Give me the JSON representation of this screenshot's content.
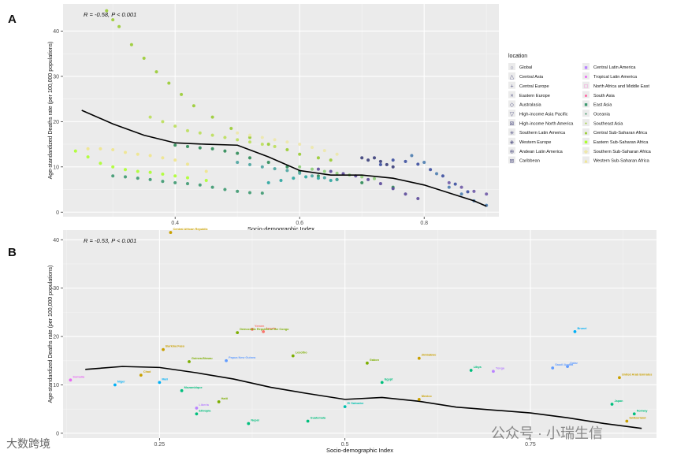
{
  "panels": {
    "a": {
      "letter": "A",
      "annotation": "R = -0.58, P < 0.001",
      "xlabel": "Socio-demographic Index",
      "ylabel": "Age-standardized Deaths rate (per 100,000 populations)"
    },
    "b": {
      "letter": "B",
      "annotation": "R = -0.53, P < 0.001",
      "xlabel": "Socio-demographic Index",
      "ylabel": "Age-standardized Deaths rate (per 100,000 populations)"
    }
  },
  "legend": {
    "title": "location",
    "items": [
      {
        "label": "Global",
        "symbol": "circle-open",
        "color": "#f8766d"
      },
      {
        "label": "Central Asia",
        "symbol": "triangle-open",
        "color": "#e58700"
      },
      {
        "label": "Central Europe",
        "symbol": "plus",
        "color": "#c99800"
      },
      {
        "label": "Eastern Europe",
        "symbol": "cross",
        "color": "#a3a500"
      },
      {
        "label": "Australasia",
        "symbol": "diamond-open",
        "color": "#6bb100"
      },
      {
        "label": "High-income Asia Pacific",
        "symbol": "triangle-down-open",
        "color": "#00ba38"
      },
      {
        "label": "High-income North America",
        "symbol": "square-cross",
        "color": "#00bf7d"
      },
      {
        "label": "Southern Latin America",
        "symbol": "star",
        "color": "#00c0af"
      },
      {
        "label": "Western Europe",
        "symbol": "diamond-plus",
        "color": "#00bcd8"
      },
      {
        "label": "Andean Latin America",
        "symbol": "circle-plus",
        "color": "#00b0f6"
      },
      {
        "label": "Caribbean",
        "symbol": "square-x",
        "color": "#619cff"
      },
      {
        "label": "Central Latin America",
        "symbol": "square",
        "color": "#b983ff"
      },
      {
        "label": "Tropical Latin America",
        "symbol": "circle",
        "color": "#e76bf3"
      },
      {
        "label": "North Africa and Middle East",
        "symbol": "square-open",
        "color": "#fd61d1"
      },
      {
        "label": "South Asia",
        "symbol": "circle",
        "color": "#ff67a4"
      },
      {
        "label": "East Asia",
        "symbol": "square",
        "color": "#3d9970"
      },
      {
        "label": "Oceania",
        "symbol": "dot",
        "color": "#2e8b57"
      },
      {
        "label": "Southeast Asia",
        "symbol": "dot",
        "color": "#9acd32"
      },
      {
        "label": "Central Sub-Saharan Africa",
        "symbol": "circle",
        "color": "#9acd32"
      },
      {
        "label": "Eastern Sub-Saharan Africa",
        "symbol": "square",
        "color": "#adff2f"
      },
      {
        "label": "Southern Sub-Saharan Africa",
        "symbol": "diamond",
        "color": "#eee8aa"
      },
      {
        "label": "Western Sub-Saharan Africa",
        "symbol": "triangle",
        "color": "#f0e68c"
      }
    ]
  },
  "watermarks": {
    "left": "大数跨境",
    "right": "公众号 · 小瑞生信"
  },
  "chart_data": [
    {
      "type": "scatter",
      "title": "",
      "xlabel": "Socio-demographic Index",
      "ylabel": "Age-standardized Deaths rate (per 100,000 populations)",
      "xlim": [
        0.22,
        0.92
      ],
      "ylim": [
        -1,
        46
      ],
      "xticks": [
        0.4,
        0.6,
        0.8
      ],
      "yticks": [
        0,
        10,
        20,
        30,
        40
      ],
      "smooth_curve": {
        "x": [
          0.25,
          0.3,
          0.35,
          0.4,
          0.45,
          0.5,
          0.55,
          0.6,
          0.65,
          0.7,
          0.75,
          0.8,
          0.85,
          0.88,
          0.9
        ],
        "y": [
          22.5,
          19.5,
          17,
          15.3,
          15,
          14.8,
          12.2,
          9.2,
          8.2,
          8.2,
          7.5,
          6,
          3.8,
          2.5,
          1.3
        ]
      },
      "series": [
        {
          "name": "Western Sub-Saharan Africa",
          "color": "#9acd32",
          "x": [
            0.29,
            0.3,
            0.31,
            0.33,
            0.35,
            0.37,
            0.39,
            0.41,
            0.43,
            0.46,
            0.49,
            0.52,
            0.55,
            0.58,
            0.6,
            0.63,
            0.65
          ],
          "y": [
            44.5,
            42.5,
            41,
            37,
            34,
            31,
            28.5,
            26,
            23.5,
            21,
            18.5,
            16.5,
            15,
            13.8,
            12.8,
            12,
            11.5
          ]
        },
        {
          "name": "Oceania",
          "color": "#3d9970",
          "x": [
            0.3,
            0.32,
            0.34,
            0.36,
            0.38,
            0.4,
            0.42,
            0.44,
            0.46,
            0.48,
            0.5,
            0.52,
            0.54
          ],
          "y": [
            8,
            7.8,
            7.5,
            7.2,
            6.8,
            6.5,
            6.3,
            6,
            5.5,
            5,
            4.6,
            4.3,
            4.2
          ]
        },
        {
          "name": "Central Sub-Saharan Africa",
          "color": "#adff2f",
          "x": [
            0.24,
            0.26,
            0.28,
            0.3,
            0.32,
            0.34,
            0.36,
            0.38,
            0.4,
            0.42,
            0.45
          ],
          "y": [
            13.5,
            12.2,
            10.8,
            10,
            9.4,
            9,
            8.8,
            8.4,
            8,
            7.6,
            7
          ]
        },
        {
          "name": "Eastern Sub-Saharan Africa",
          "color": "#f0e68c",
          "x": [
            0.26,
            0.28,
            0.3,
            0.32,
            0.34,
            0.36,
            0.38,
            0.4,
            0.42,
            0.45
          ],
          "y": [
            14,
            14,
            13.8,
            13.2,
            12.8,
            12.5,
            12,
            11.5,
            10.6,
            9
          ]
        },
        {
          "name": "Southeast Asia",
          "color": "#2e8b57",
          "x": [
            0.4,
            0.42,
            0.44,
            0.46,
            0.48,
            0.5,
            0.52,
            0.55,
            0.58,
            0.6,
            0.63,
            0.66,
            0.7,
            0.75
          ],
          "y": [
            14.8,
            14.5,
            14.2,
            14,
            13.5,
            13,
            12,
            11,
            10,
            9,
            8,
            7.2,
            6.5,
            5.5
          ]
        },
        {
          "name": "South Asia",
          "color": "#bcdf5a",
          "x": [
            0.36,
            0.38,
            0.4,
            0.42,
            0.44,
            0.46,
            0.48,
            0.5,
            0.52,
            0.54,
            0.56
          ],
          "y": [
            21,
            20,
            19,
            18,
            17.5,
            17,
            16.5,
            16,
            15.5,
            15,
            14.5
          ]
        },
        {
          "name": "Southern Sub-Saharan Africa",
          "color": "#eee8aa",
          "x": [
            0.5,
            0.52,
            0.54,
            0.56,
            0.58,
            0.6,
            0.62,
            0.64,
            0.66
          ],
          "y": [
            17.5,
            17,
            16.5,
            16,
            15.5,
            15,
            14.3,
            13.6,
            12.8
          ]
        },
        {
          "name": "High-income Asia Pacific",
          "color": "#3c4fa0",
          "x": [
            0.73,
            0.75,
            0.77,
            0.79,
            0.81,
            0.83,
            0.85,
            0.87
          ],
          "y": [
            10.5,
            11.5,
            11.2,
            10.6,
            9.4,
            8,
            6.2,
            4.5
          ]
        },
        {
          "name": "Central Europe",
          "color": "#5b4a9a",
          "x": [
            0.63,
            0.65,
            0.67,
            0.69,
            0.71,
            0.73,
            0.75,
            0.77,
            0.79
          ],
          "y": [
            9.5,
            9,
            8.5,
            8,
            7.2,
            6.3,
            5.2,
            4,
            3
          ]
        },
        {
          "name": "Eastern Europe",
          "color": "#3a3f7a",
          "x": [
            0.7,
            0.71,
            0.72,
            0.73,
            0.74,
            0.75
          ],
          "y": [
            12,
            11.5,
            12,
            11.2,
            10.5,
            10
          ]
        },
        {
          "name": "Western Europe",
          "color": "#4c7db0",
          "x": [
            0.78,
            0.8,
            0.82,
            0.84,
            0.86,
            0.88,
            0.9
          ],
          "y": [
            12.5,
            11,
            8.5,
            5.5,
            4,
            2.5,
            1.5
          ]
        },
        {
          "name": "North Africa and Middle East",
          "color": "#4aa5a0",
          "x": [
            0.5,
            0.52,
            0.54,
            0.56,
            0.58,
            0.6,
            0.62,
            0.64,
            0.66
          ],
          "y": [
            11,
            10.5,
            10,
            9.6,
            9.2,
            8.6,
            8,
            7.6,
            7.2
          ]
        },
        {
          "name": "Andean Latin America",
          "color": "#2aa6a0",
          "x": [
            0.55,
            0.57,
            0.59,
            0.61,
            0.63,
            0.65
          ],
          "y": [
            6.5,
            7,
            7.5,
            7.8,
            7.5,
            7
          ]
        },
        {
          "name": "Tropical Latin America",
          "color": "#8fcf7a",
          "x": [
            0.6,
            0.62,
            0.64,
            0.66,
            0.68,
            0.7,
            0.72
          ],
          "y": [
            10,
            9.5,
            9,
            8.6,
            8.2,
            7.8,
            7.4
          ]
        },
        {
          "name": "Australasia",
          "color": "#6f5aa8",
          "x": [
            0.84,
            0.86,
            0.88,
            0.9
          ],
          "y": [
            6.5,
            5.5,
            4.6,
            4
          ]
        }
      ]
    },
    {
      "type": "scatter",
      "title": "",
      "xlabel": "Socio-demographic Index",
      "ylabel": "Age-standardized Deaths rate (per 100,000 populations)",
      "xlim": [
        0.12,
        0.92
      ],
      "ylim": [
        -1,
        42
      ],
      "xticks": [
        0.25,
        0.5,
        0.75
      ],
      "yticks": [
        0,
        10,
        20,
        30,
        40
      ],
      "smooth_curve": {
        "x": [
          0.15,
          0.2,
          0.25,
          0.3,
          0.35,
          0.4,
          0.45,
          0.5,
          0.55,
          0.6,
          0.65,
          0.7,
          0.75,
          0.8,
          0.85,
          0.9
        ],
        "y": [
          13.2,
          13.8,
          13.6,
          12.5,
          11.2,
          9.5,
          8.2,
          7,
          7.4,
          6.6,
          5.4,
          4.8,
          4.2,
          3.2,
          2,
          1
        ]
      },
      "points": [
        {
          "label": "Central African Republic",
          "x": 0.265,
          "y": 41.5,
          "color": "#c9a000"
        },
        {
          "label": "Yemen",
          "x": 0.375,
          "y": 21.5,
          "color": "#f8766d"
        },
        {
          "label": "Angola",
          "x": 0.39,
          "y": 21,
          "color": "#f8766d"
        },
        {
          "label": "Democratic Republic of the Congo",
          "x": 0.355,
          "y": 20.8,
          "color": "#7cae00"
        },
        {
          "label": "Burkina Faso",
          "x": 0.255,
          "y": 17.3,
          "color": "#c9a000"
        },
        {
          "label": "Lesotho",
          "x": 0.43,
          "y": 16,
          "color": "#7cae00"
        },
        {
          "label": "Papua New Guinea",
          "x": 0.34,
          "y": 15,
          "color": "#619cff"
        },
        {
          "label": "Guinea-Bissau",
          "x": 0.29,
          "y": 14.8,
          "color": "#7cae00"
        },
        {
          "label": "Gabon",
          "x": 0.53,
          "y": 14.5,
          "color": "#7cae00"
        },
        {
          "label": "Zimbabwe",
          "x": 0.6,
          "y": 15.5,
          "color": "#c9a000"
        },
        {
          "label": "Brunei",
          "x": 0.81,
          "y": 21,
          "color": "#00b0f6"
        },
        {
          "label": "Chad",
          "x": 0.225,
          "y": 12,
          "color": "#c9a000"
        },
        {
          "label": "Somalia",
          "x": 0.13,
          "y": 11,
          "color": "#e76bf3"
        },
        {
          "label": "Niger",
          "x": 0.19,
          "y": 10,
          "color": "#00b0f6"
        },
        {
          "label": "Mali",
          "x": 0.25,
          "y": 10.5,
          "color": "#00b0f6"
        },
        {
          "label": "Mozambique",
          "x": 0.28,
          "y": 8.8,
          "color": "#00bf7d"
        },
        {
          "label": "Ethiopia",
          "x": 0.3,
          "y": 4,
          "color": "#00bf7d"
        },
        {
          "label": "Liberia",
          "x": 0.3,
          "y": 5.2,
          "color": "#b983ff"
        },
        {
          "label": "Nepal",
          "x": 0.37,
          "y": 2,
          "color": "#00bf7d"
        },
        {
          "label": "Haiti",
          "x": 0.33,
          "y": 6.5,
          "color": "#7cae00"
        },
        {
          "label": "Guatemala",
          "x": 0.45,
          "y": 2.5,
          "color": "#00bf7d"
        },
        {
          "label": "El Salvador",
          "x": 0.5,
          "y": 5.5,
          "color": "#00c0af"
        },
        {
          "label": "Mexico",
          "x": 0.6,
          "y": 7,
          "color": "#c9a000"
        },
        {
          "label": "Egypt",
          "x": 0.55,
          "y": 10.5,
          "color": "#00bf7d"
        },
        {
          "label": "Libya",
          "x": 0.67,
          "y": 13,
          "color": "#00bf7d"
        },
        {
          "label": "Tonga",
          "x": 0.7,
          "y": 12.8,
          "color": "#b983ff"
        },
        {
          "label": "Saudi Arabia",
          "x": 0.78,
          "y": 13.5,
          "color": "#619cff"
        },
        {
          "label": "Qatar",
          "x": 0.8,
          "y": 13.8,
          "color": "#619cff"
        },
        {
          "label": "United Arab Emirates",
          "x": 0.87,
          "y": 11.5,
          "color": "#c9a000"
        },
        {
          "label": "Japan",
          "x": 0.86,
          "y": 6,
          "color": "#00bf7d"
        },
        {
          "label": "Norway",
          "x": 0.89,
          "y": 4,
          "color": "#00bf7d"
        },
        {
          "label": "Switzerland",
          "x": 0.88,
          "y": 2.5,
          "color": "#c9a000"
        }
      ]
    }
  ]
}
